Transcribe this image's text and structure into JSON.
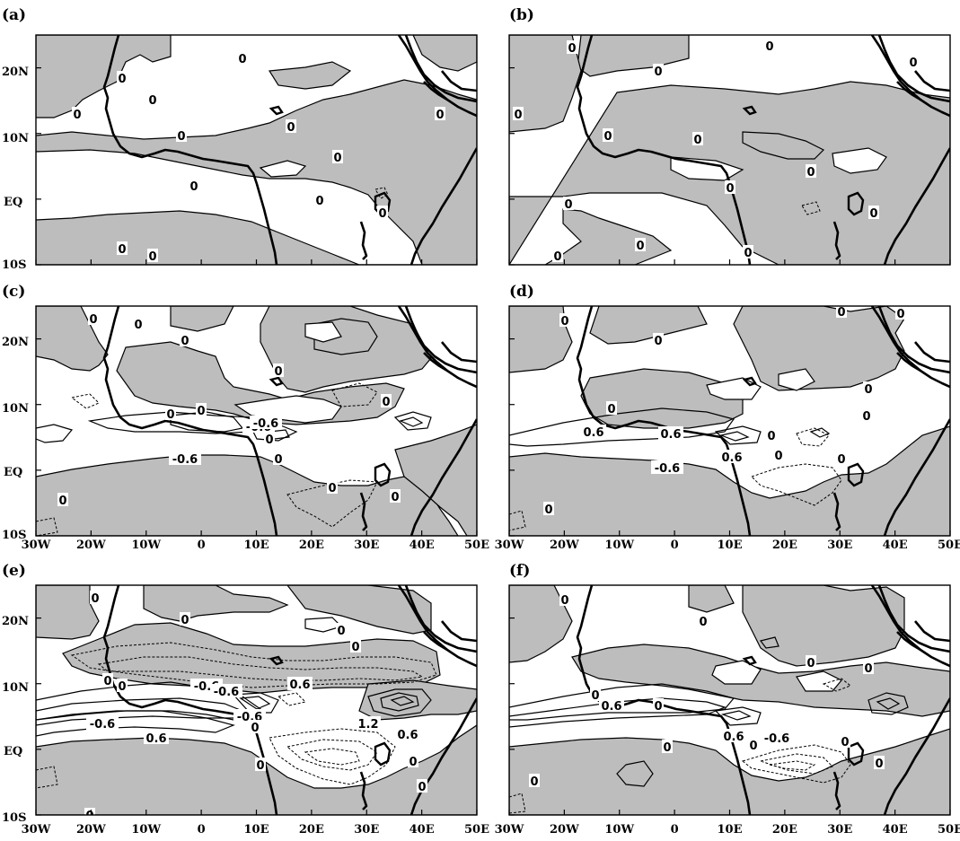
{
  "panels": [
    {
      "id": "a",
      "label": "(a)",
      "contour_labels": [
        "0",
        "0",
        "0",
        "0",
        "0",
        "0",
        "0",
        "0",
        "0",
        "0",
        "0",
        "0",
        "0"
      ]
    },
    {
      "id": "b",
      "label": "(b)",
      "contour_labels": [
        "0",
        "0",
        "0",
        "0",
        "0",
        "0",
        "0",
        "0",
        "0",
        "0",
        "0",
        "0",
        "0",
        "0"
      ]
    },
    {
      "id": "c",
      "label": "(c)",
      "contour_labels": [
        "0",
        "0",
        "0",
        "0",
        "0",
        "0",
        "0",
        "-0.6",
        "-0.6",
        "0",
        "-0.6",
        "0",
        "0",
        "0",
        "0"
      ]
    },
    {
      "id": "d",
      "label": "(d)",
      "contour_labels": [
        "0",
        "0",
        "0",
        "0",
        "0",
        "0",
        "0.6",
        "0.6",
        "0.6",
        "0",
        "0",
        "-0.6",
        "0",
        "0",
        "0"
      ]
    },
    {
      "id": "e",
      "label": "(e)",
      "contour_labels": [
        "0",
        "0",
        "0",
        "0",
        "0",
        "0",
        "-0.6",
        "0.6",
        "-0.6",
        "-0.6",
        "0",
        "1.2",
        "0.6",
        "-0.6",
        "0.6",
        "0",
        "0",
        "0",
        "0"
      ]
    },
    {
      "id": "f",
      "label": "(f)",
      "contour_labels": [
        "0",
        "0",
        "0",
        "0",
        "0",
        "0.6",
        "0",
        "0.6",
        "0",
        "-0.6",
        "0",
        "0",
        "0",
        "0"
      ]
    }
  ],
  "axes": {
    "lat_labels": [
      "20N",
      "10N",
      "EQ",
      "10S"
    ],
    "lon_labels": [
      "30W",
      "20W",
      "10W",
      "0",
      "10E",
      "20E",
      "30E",
      "40E",
      "50E"
    ],
    "lon_range": [
      -30,
      50
    ],
    "lat_range": [
      -10,
      25
    ]
  },
  "colors": {
    "shade": "#bdbdbd",
    "background": "#ffffff",
    "line": "#000000"
  }
}
